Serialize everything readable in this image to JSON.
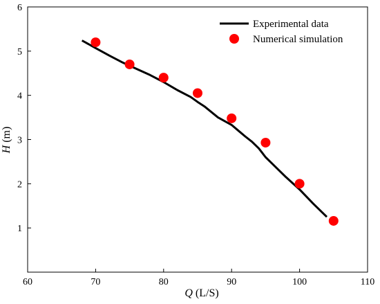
{
  "chart_data": {
    "type": "line",
    "xlabel_symbol": "Q",
    "xlabel_unit": " (L/S)",
    "ylabel_symbol": "H",
    "ylabel_unit": " (m)",
    "xlim": [
      60,
      110
    ],
    "ylim": [
      0,
      6
    ],
    "xticks": [
      60,
      70,
      80,
      90,
      100,
      110
    ],
    "yticks": [
      1,
      2,
      3,
      4,
      5,
      6
    ],
    "legend_position": "top-right",
    "series": [
      {
        "name": "Experimental data",
        "kind": "line",
        "color": "#000000",
        "x": [
          68,
          70,
          72,
          74,
          76,
          78,
          80,
          82,
          84,
          85,
          86,
          88,
          90,
          91,
          92,
          93,
          94,
          95,
          96,
          98,
          100,
          102,
          104
        ],
        "y": [
          5.24,
          5.07,
          4.9,
          4.74,
          4.6,
          4.46,
          4.3,
          4.12,
          3.96,
          3.85,
          3.75,
          3.5,
          3.33,
          3.2,
          3.07,
          2.95,
          2.8,
          2.6,
          2.45,
          2.15,
          1.87,
          1.55,
          1.25
        ]
      },
      {
        "name": "Numerical simulation",
        "kind": "scatter",
        "color": "#ff0000",
        "x": [
          70,
          75,
          80,
          85,
          90,
          95,
          100,
          105
        ],
        "y": [
          5.2,
          4.7,
          4.4,
          4.05,
          3.48,
          2.93,
          2.0,
          1.16
        ]
      }
    ]
  }
}
